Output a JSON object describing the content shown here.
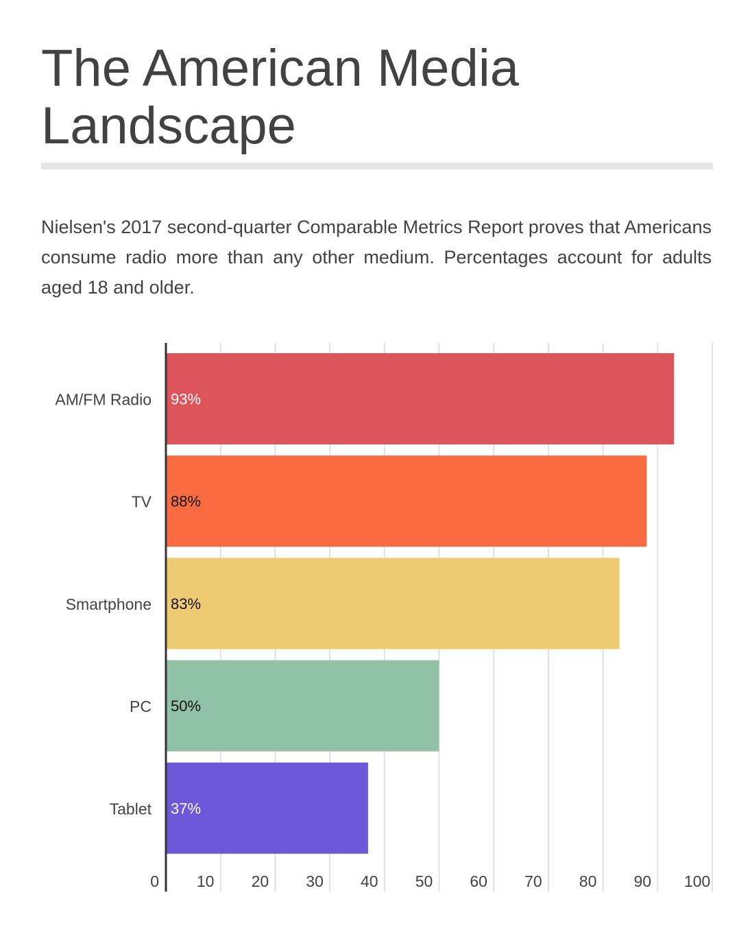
{
  "title": "The American Media Landscape",
  "description": "Nielsen's 2017 second-quarter Comparable Metrics Report proves that Americans consume radio more than any other medium.  Percentages account for adults aged 18 and older.",
  "chart_data": {
    "type": "bar",
    "orientation": "horizontal",
    "categories": [
      "AM/FM Radio",
      "TV",
      "Smartphone",
      "PC",
      "Tablet"
    ],
    "values": [
      93,
      88,
      83,
      50,
      37
    ],
    "data_labels": [
      "93%",
      "88%",
      "83%",
      "50%",
      "37%"
    ],
    "colors": [
      "#dd555b",
      "#f96c41",
      "#eecb72",
      "#91c1a6",
      "#6c58d8"
    ],
    "label_colors": [
      "#ffffff",
      "#111111",
      "#111111",
      "#111111",
      "#ffffff"
    ],
    "x_ticks": [
      0,
      10,
      20,
      30,
      40,
      50,
      60,
      70,
      80,
      90,
      100
    ],
    "xlim": [
      0,
      100
    ],
    "grid": true,
    "legend": "none"
  }
}
